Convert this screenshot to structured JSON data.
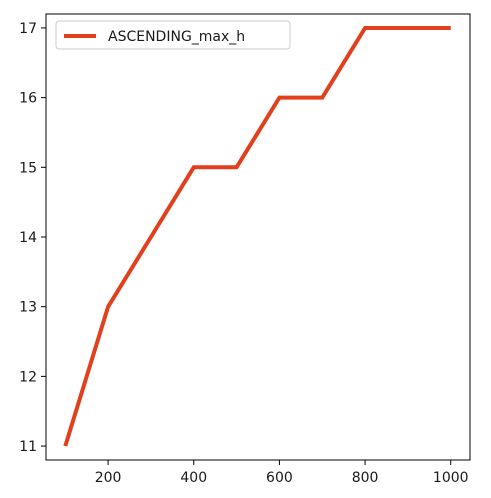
{
  "chart_data": {
    "type": "line",
    "title": "",
    "xlabel": "",
    "ylabel": "",
    "x": [
      100,
      200,
      300,
      400,
      500,
      600,
      700,
      800,
      900,
      1000
    ],
    "series": [
      {
        "name": "ASCENDING_max_h",
        "color": "#e2401c",
        "values": [
          11,
          13,
          14,
          15,
          15,
          16,
          16,
          17,
          17,
          17
        ]
      }
    ],
    "xlim": [
      55,
      1045
    ],
    "ylim": [
      10.8,
      17.2
    ],
    "xticks": [
      200,
      400,
      600,
      800,
      1000
    ],
    "yticks": [
      11,
      12,
      13,
      14,
      15,
      16,
      17
    ],
    "grid": false,
    "legend": {
      "placement": "upper-left"
    }
  }
}
